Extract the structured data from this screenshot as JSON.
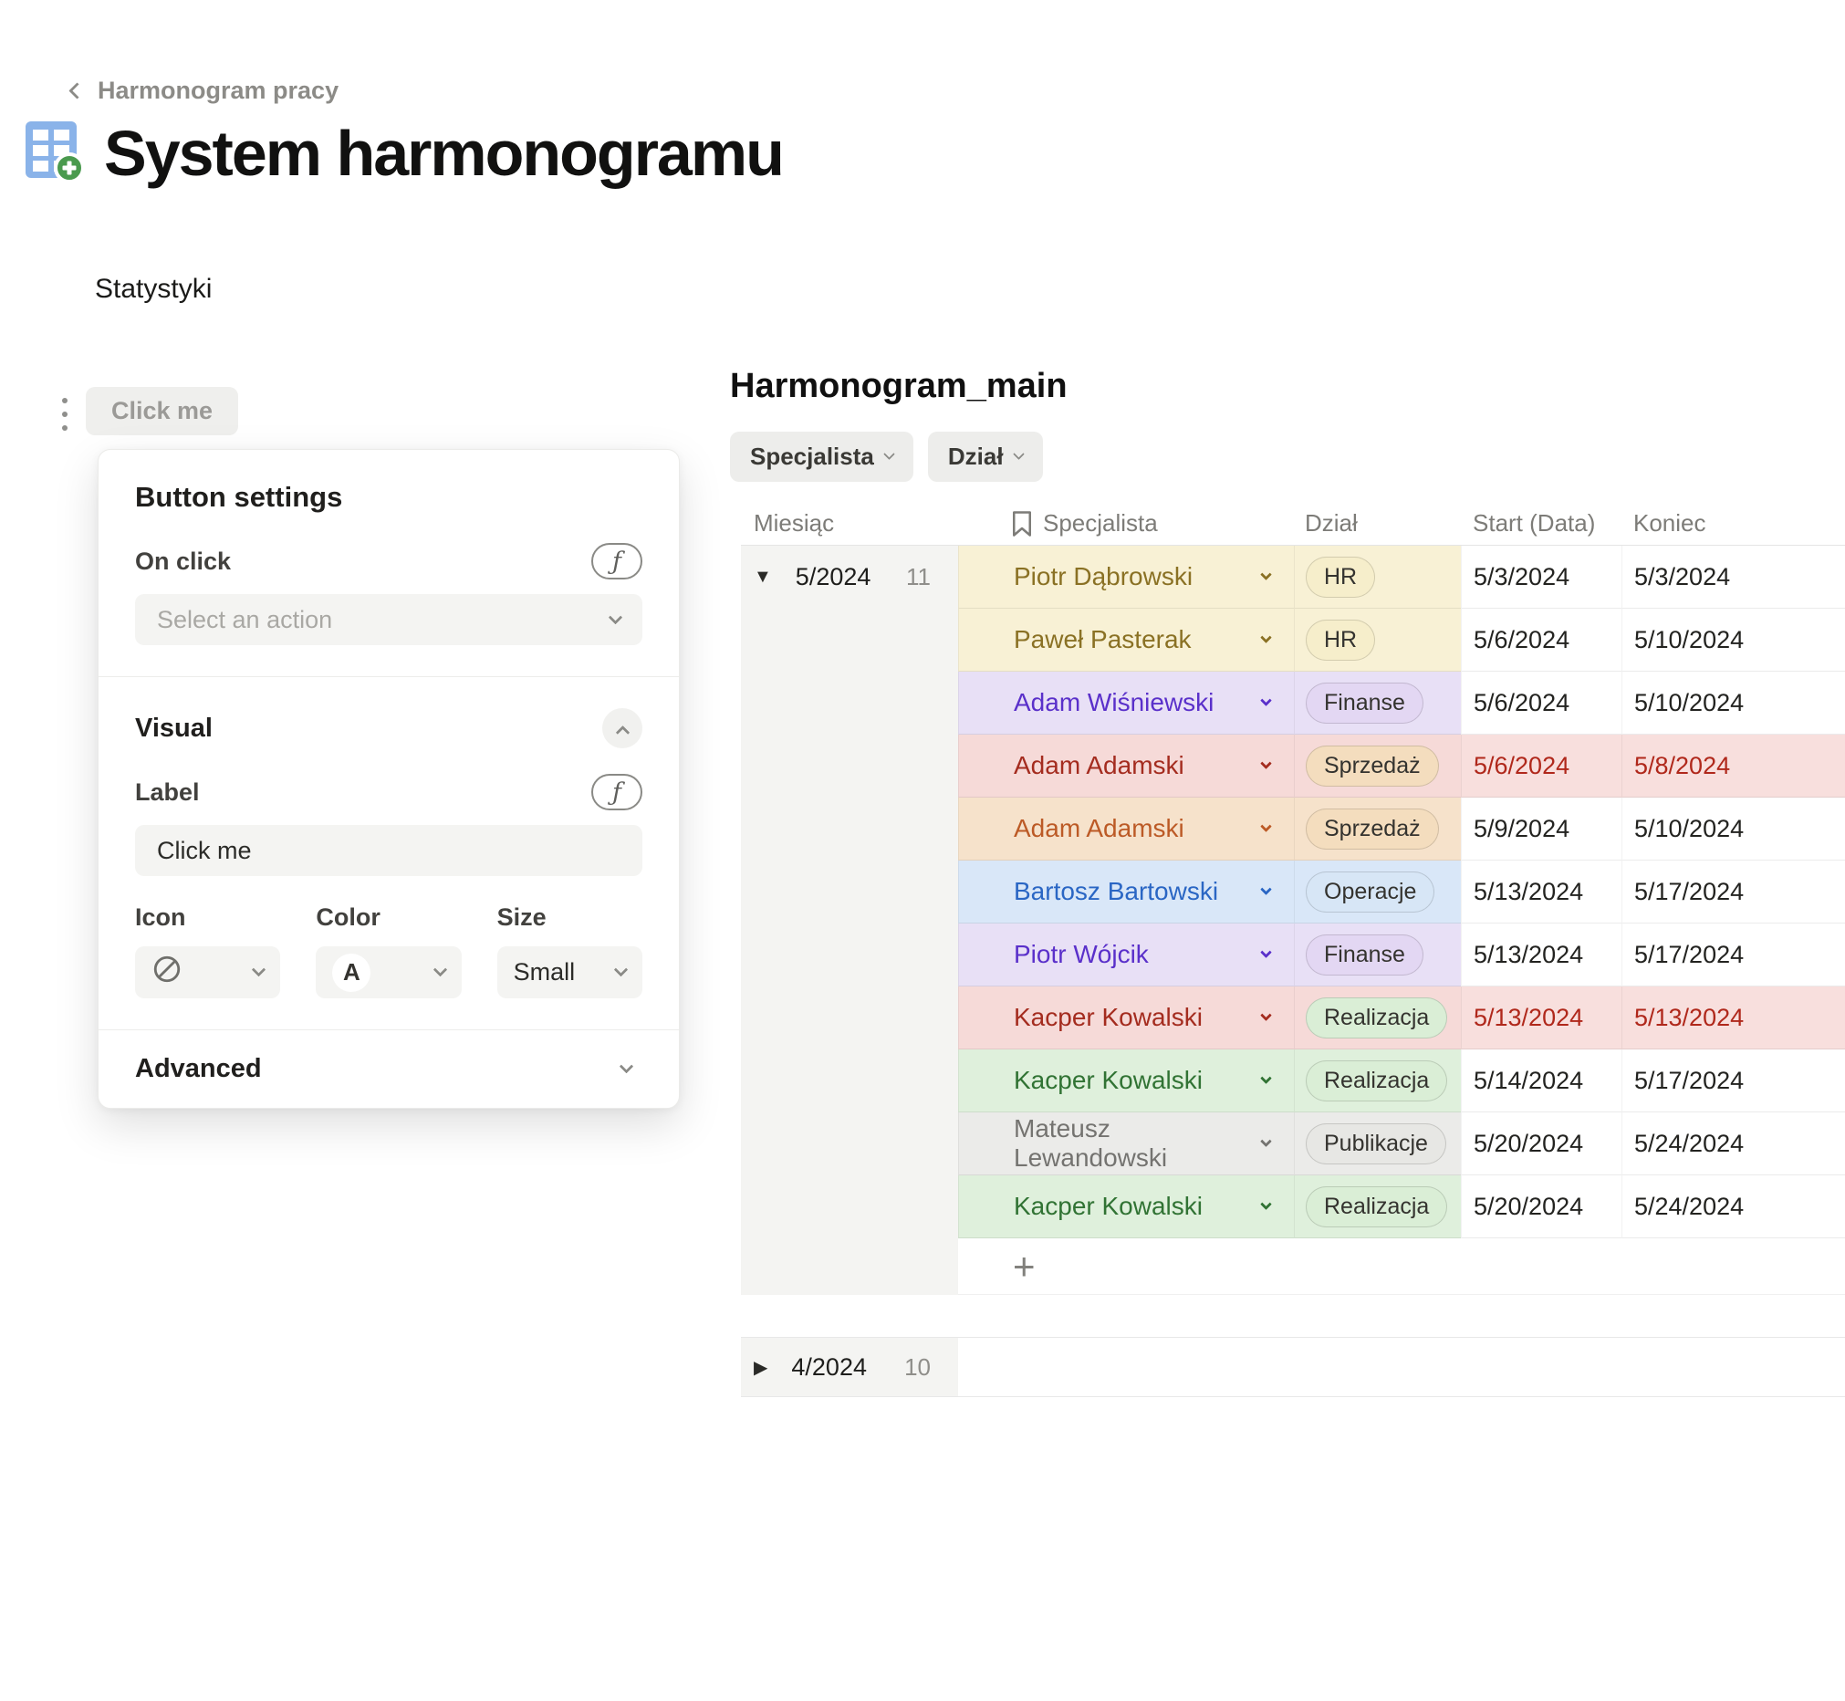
{
  "breadcrumb": {
    "label": "Harmonogram pracy"
  },
  "page": {
    "title": "System harmonogramu",
    "icon": "table-with-plus"
  },
  "section": {
    "statystyki": "Statystyki"
  },
  "button_widget": {
    "label": "Click me"
  },
  "panel": {
    "title": "Button settings",
    "on_click": {
      "label": "On click",
      "placeholder": "Select an action",
      "formula_icon": "ƒ"
    },
    "visual": {
      "label": "Visual",
      "label_field": {
        "label": "Label",
        "value": "Click me",
        "formula_icon": "ƒ"
      },
      "icon_field": {
        "label": "Icon",
        "value_icon": "none-icon"
      },
      "color_field": {
        "label": "Color",
        "value": "A"
      },
      "size_field": {
        "label": "Size",
        "value": "Small"
      }
    },
    "advanced": {
      "label": "Advanced"
    }
  },
  "table": {
    "title": "Harmonogram_main",
    "filters": [
      "Specjalista",
      "Dział"
    ],
    "columns": {
      "month": "Miesiąc",
      "specialist": "Specjalista",
      "department": "Dział",
      "start": "Start (Data)",
      "end": "Koniec"
    },
    "add_row_label": "+",
    "groups": [
      {
        "label": "5/2024",
        "count": "11",
        "collapsed": false,
        "has_add_row": true,
        "rows": [
          {
            "name": "Piotr Dąbrowski",
            "dept": "HR",
            "start": "5/3/2024",
            "end": "5/3/2024",
            "theme": "yellow",
            "full": false
          },
          {
            "name": "Paweł Pasterak",
            "dept": "HR",
            "start": "5/6/2024",
            "end": "5/10/2024",
            "theme": "yellow",
            "full": false
          },
          {
            "name": "Adam Wiśniewski",
            "dept": "Finanse",
            "start": "5/6/2024",
            "end": "5/10/2024",
            "theme": "purple",
            "full": false
          },
          {
            "name": "Adam Adamski",
            "dept": "Sprzedaż",
            "start": "5/6/2024",
            "end": "5/8/2024",
            "theme": "red",
            "full": true
          },
          {
            "name": "Adam Adamski",
            "dept": "Sprzedaż",
            "start": "5/9/2024",
            "end": "5/10/2024",
            "theme": "orange",
            "full": false
          },
          {
            "name": "Bartosz Bartowski",
            "dept": "Operacje",
            "start": "5/13/2024",
            "end": "5/17/2024",
            "theme": "blue",
            "full": false
          },
          {
            "name": "Piotr Wójcik",
            "dept": "Finanse",
            "start": "5/13/2024",
            "end": "5/17/2024",
            "theme": "purple",
            "full": false
          },
          {
            "name": "Kacper Kowalski",
            "dept": "Realizacja",
            "start": "5/13/2024",
            "end": "5/13/2024",
            "theme": "red",
            "full": true
          },
          {
            "name": "Kacper Kowalski",
            "dept": "Realizacja",
            "start": "5/14/2024",
            "end": "5/17/2024",
            "theme": "green",
            "full": false
          },
          {
            "name": "Mateusz Lewandowski",
            "dept": "Publikacje",
            "start": "5/20/2024",
            "end": "5/24/2024",
            "theme": "gray",
            "full": false
          },
          {
            "name": "Kacper Kowalski",
            "dept": "Realizacja",
            "start": "5/20/2024",
            "end": "5/24/2024",
            "theme": "green",
            "full": false
          }
        ]
      },
      {
        "label": "4/2024",
        "count": "10",
        "collapsed": true,
        "has_add_row": false,
        "rows": []
      }
    ]
  },
  "colors": {
    "accent_blue_icon": "#8ab3e9",
    "accent_green_icon": "#4a9a4e",
    "group_column_bg": "#f4f4f2",
    "red_date_text": "#b0281b",
    "themes": {
      "yellow": {
        "bg": "#f8f1d5",
        "text": "#8a7124"
      },
      "purple": {
        "bg": "#e8e0f6",
        "text": "#5a30ca"
      },
      "red": {
        "bg": "#f6dad8",
        "text": "#a42c1f",
        "date_bg": "#f8dfdd",
        "date_text": "#b0281b"
      },
      "orange": {
        "bg": "#f6e2cb",
        "text": "#bc5a26"
      },
      "blue": {
        "bg": "#d9e7f8",
        "text": "#2a66c4"
      },
      "green": {
        "bg": "#dff0dc",
        "text": "#317334"
      },
      "gray": {
        "bg": "#ebebe9",
        "text": "#747370"
      }
    },
    "dept_chips": {
      "HR": "#f6eecb",
      "Finanse": "#e3d7f3",
      "Sprzedaż": "#f4ddbe",
      "Operacje": "#d7e6f6",
      "Realizacja": "#daeed6",
      "Publikacje": "#e7e7e4"
    }
  }
}
